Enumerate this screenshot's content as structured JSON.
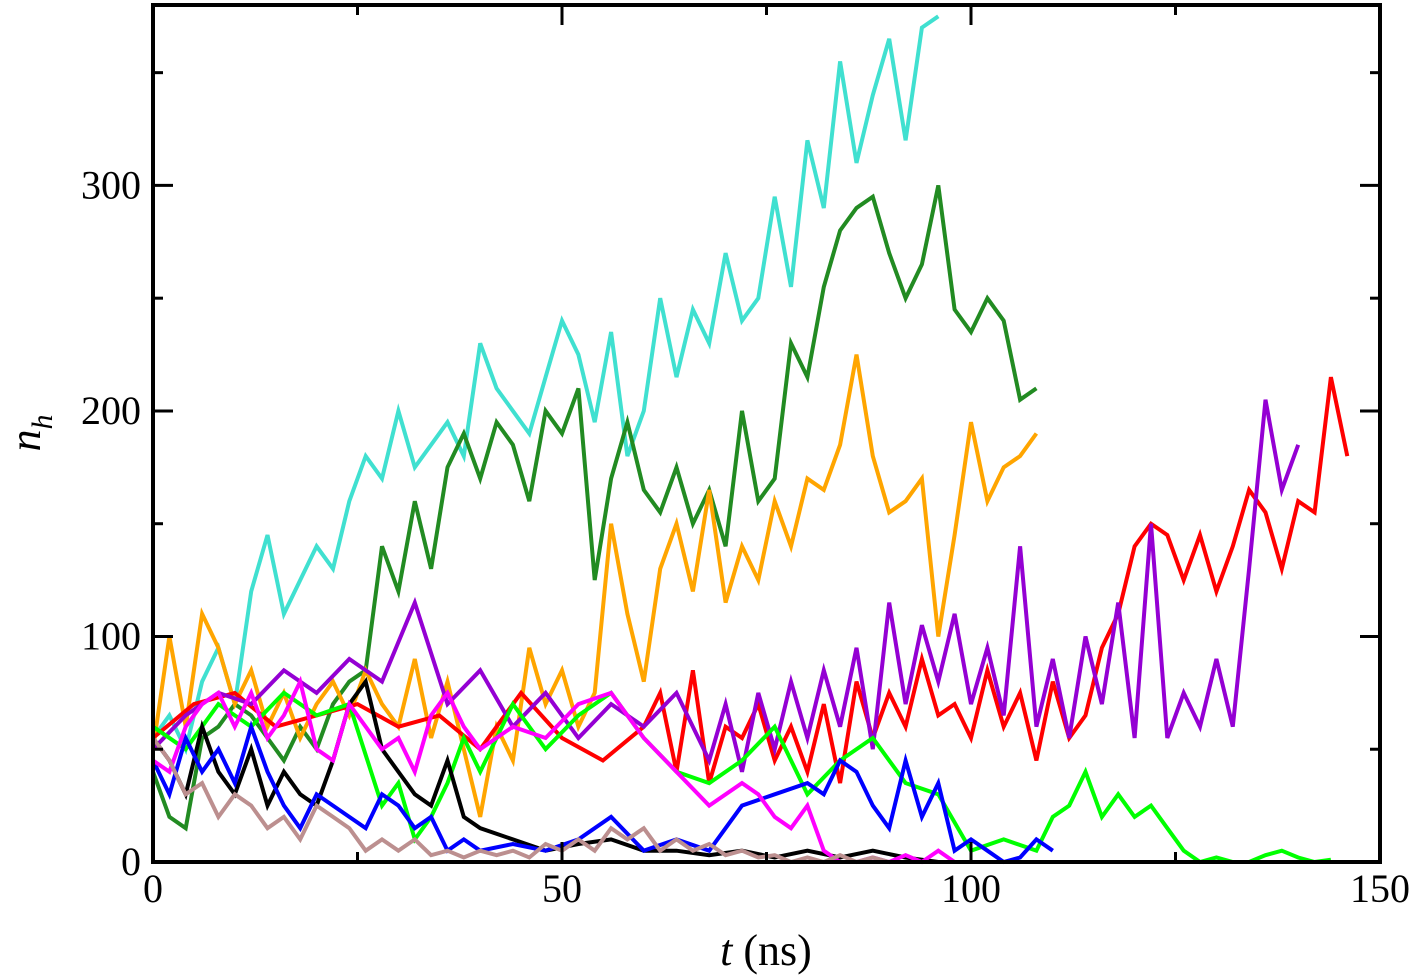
{
  "chart_data": {
    "type": "line",
    "title": "",
    "xlabel": {
      "var": "t",
      "unit": " (ns)"
    },
    "ylabel": {
      "var": "n",
      "sub": "h"
    },
    "xlim": [
      0,
      150
    ],
    "ylim": [
      0,
      380
    ],
    "xticks": [
      0,
      50,
      100,
      150
    ],
    "yticks": [
      0,
      100,
      200,
      300
    ],
    "xtick_labels": [
      "0",
      "50",
      "100",
      "150"
    ],
    "ytick_labels": [
      "0",
      "100",
      "200",
      "300"
    ],
    "grid": false,
    "legend": "none",
    "series": [
      {
        "color": "#40e0d0",
        "x": [
          0,
          2,
          4,
          6,
          8,
          10,
          12,
          14,
          16,
          18,
          20,
          22,
          24,
          26,
          28,
          30,
          32,
          34,
          36,
          38,
          40,
          42,
          44,
          46,
          48,
          50,
          52,
          54,
          56,
          58,
          60,
          62,
          64,
          66,
          68,
          70,
          72,
          74,
          76,
          78,
          80,
          82,
          84,
          86,
          88,
          90,
          92,
          94,
          96
        ],
        "y": [
          55,
          65,
          50,
          80,
          95,
          70,
          120,
          145,
          110,
          125,
          140,
          130,
          160,
          180,
          170,
          200,
          175,
          185,
          195,
          180,
          230,
          210,
          200,
          190,
          215,
          240,
          225,
          195,
          235,
          180,
          200,
          250,
          215,
          245,
          230,
          270,
          240,
          250,
          295,
          255,
          320,
          290,
          355,
          310,
          340,
          365,
          320,
          370,
          375
        ]
      },
      {
        "color": "#228b22",
        "x": [
          0,
          2,
          4,
          6,
          8,
          10,
          12,
          14,
          16,
          18,
          20,
          22,
          24,
          26,
          28,
          30,
          32,
          34,
          36,
          38,
          40,
          42,
          44,
          46,
          48,
          50,
          52,
          54,
          56,
          58,
          60,
          62,
          64,
          66,
          68,
          70,
          72,
          74,
          76,
          78,
          80,
          82,
          84,
          86,
          88,
          90,
          92,
          94,
          96,
          98,
          100,
          102,
          104,
          106,
          108
        ],
        "y": [
          40,
          20,
          15,
          55,
          60,
          70,
          65,
          55,
          45,
          60,
          50,
          70,
          80,
          85,
          140,
          120,
          160,
          130,
          175,
          190,
          170,
          195,
          185,
          160,
          200,
          190,
          210,
          125,
          170,
          195,
          165,
          155,
          175,
          150,
          165,
          140,
          200,
          160,
          170,
          230,
          215,
          255,
          280,
          290,
          295,
          270,
          250,
          265,
          300,
          245,
          235,
          250,
          240,
          205,
          210
        ]
      },
      {
        "color": "#ffa500",
        "x": [
          0,
          2,
          4,
          6,
          8,
          10,
          12,
          14,
          16,
          18,
          20,
          22,
          24,
          26,
          28,
          30,
          32,
          34,
          36,
          38,
          40,
          42,
          44,
          46,
          48,
          50,
          52,
          54,
          56,
          58,
          60,
          62,
          64,
          66,
          68,
          70,
          72,
          74,
          76,
          78,
          80,
          82,
          84,
          86,
          88,
          90,
          92,
          94,
          96,
          98,
          100,
          102,
          104,
          106,
          108
        ],
        "y": [
          50,
          100,
          60,
          110,
          95,
          70,
          85,
          60,
          75,
          55,
          70,
          80,
          65,
          85,
          70,
          60,
          90,
          55,
          80,
          50,
          20,
          60,
          45,
          95,
          70,
          85,
          60,
          75,
          150,
          110,
          80,
          130,
          150,
          120,
          165,
          115,
          140,
          125,
          160,
          140,
          170,
          165,
          185,
          225,
          180,
          155,
          160,
          170,
          100,
          145,
          195,
          160,
          175,
          180,
          190
        ]
      },
      {
        "color": "#ff0000",
        "x": [
          0,
          5,
          10,
          15,
          20,
          25,
          30,
          35,
          40,
          45,
          50,
          55,
          60,
          62,
          64,
          66,
          68,
          70,
          72,
          74,
          76,
          78,
          80,
          82,
          84,
          86,
          88,
          90,
          92,
          94,
          96,
          98,
          100,
          102,
          104,
          106,
          108,
          110,
          112,
          114,
          116,
          118,
          120,
          122,
          124,
          126,
          128,
          130,
          132,
          134,
          136,
          138,
          140,
          142,
          144,
          146
        ],
        "y": [
          55,
          70,
          75,
          60,
          65,
          70,
          60,
          65,
          50,
          75,
          55,
          45,
          60,
          75,
          40,
          85,
          35,
          60,
          55,
          70,
          45,
          60,
          40,
          70,
          35,
          80,
          55,
          75,
          60,
          90,
          65,
          70,
          55,
          85,
          60,
          75,
          45,
          80,
          55,
          65,
          95,
          110,
          140,
          150,
          145,
          125,
          145,
          120,
          140,
          165,
          155,
          130,
          160,
          155,
          215,
          180
        ]
      },
      {
        "color": "#9400d3",
        "x": [
          0,
          4,
          8,
          12,
          16,
          20,
          24,
          28,
          32,
          36,
          40,
          44,
          48,
          52,
          56,
          60,
          64,
          68,
          70,
          72,
          74,
          76,
          78,
          80,
          82,
          84,
          86,
          88,
          90,
          92,
          94,
          96,
          98,
          100,
          102,
          104,
          106,
          108,
          110,
          112,
          114,
          116,
          118,
          120,
          122,
          124,
          126,
          128,
          130,
          132,
          134,
          136,
          138,
          140
        ],
        "y": [
          50,
          65,
          75,
          70,
          85,
          75,
          90,
          80,
          115,
          70,
          85,
          60,
          75,
          55,
          70,
          60,
          75,
          45,
          70,
          40,
          75,
          50,
          80,
          55,
          85,
          60,
          95,
          50,
          115,
          70,
          105,
          80,
          110,
          70,
          95,
          65,
          140,
          60,
          90,
          55,
          100,
          70,
          115,
          55,
          150,
          55,
          75,
          60,
          90,
          60,
          130,
          205,
          165,
          185
        ]
      },
      {
        "color": "#00ff00",
        "x": [
          0,
          4,
          8,
          12,
          16,
          20,
          24,
          28,
          30,
          32,
          34,
          36,
          38,
          40,
          44,
          48,
          52,
          56,
          60,
          64,
          68,
          72,
          76,
          80,
          84,
          88,
          92,
          96,
          100,
          104,
          108,
          110,
          112,
          114,
          116,
          118,
          120,
          122,
          124,
          126,
          128,
          130,
          132,
          134,
          136,
          138,
          140,
          142,
          144
        ],
        "y": [
          60,
          50,
          70,
          60,
          75,
          65,
          70,
          25,
          35,
          10,
          20,
          35,
          55,
          40,
          70,
          50,
          65,
          75,
          55,
          40,
          35,
          45,
          60,
          30,
          45,
          55,
          35,
          30,
          5,
          10,
          5,
          20,
          25,
          40,
          20,
          30,
          20,
          25,
          15,
          5,
          0,
          2,
          0,
          0,
          3,
          5,
          2,
          0,
          1
        ]
      },
      {
        "color": "#000000",
        "x": [
          0,
          2,
          4,
          6,
          8,
          10,
          12,
          14,
          16,
          18,
          20,
          22,
          24,
          26,
          28,
          30,
          32,
          34,
          36,
          38,
          40,
          44,
          48,
          52,
          56,
          60,
          64,
          68,
          72,
          76,
          80,
          84,
          88,
          92,
          96,
          100
        ],
        "y": [
          55,
          45,
          30,
          60,
          40,
          30,
          50,
          25,
          40,
          30,
          25,
          45,
          70,
          80,
          50,
          40,
          30,
          25,
          45,
          20,
          15,
          10,
          5,
          8,
          10,
          5,
          5,
          3,
          5,
          2,
          5,
          2,
          5,
          2,
          0,
          0
        ]
      },
      {
        "color": "#0000ff",
        "x": [
          0,
          2,
          4,
          6,
          8,
          10,
          12,
          14,
          16,
          18,
          20,
          22,
          24,
          26,
          28,
          30,
          32,
          34,
          36,
          38,
          40,
          44,
          48,
          52,
          56,
          60,
          64,
          68,
          72,
          76,
          80,
          82,
          84,
          86,
          88,
          90,
          92,
          94,
          96,
          98,
          100,
          102,
          104,
          106,
          108,
          110
        ],
        "y": [
          45,
          30,
          55,
          40,
          50,
          35,
          60,
          40,
          25,
          15,
          30,
          25,
          20,
          15,
          30,
          25,
          15,
          20,
          5,
          10,
          5,
          8,
          5,
          10,
          20,
          5,
          10,
          5,
          25,
          30,
          35,
          30,
          45,
          40,
          25,
          15,
          45,
          20,
          35,
          5,
          10,
          5,
          0,
          2,
          10,
          5
        ]
      },
      {
        "color": "#ff00ff",
        "x": [
          0,
          2,
          4,
          6,
          8,
          10,
          12,
          14,
          16,
          18,
          20,
          22,
          24,
          26,
          28,
          30,
          32,
          34,
          36,
          38,
          40,
          44,
          48,
          52,
          56,
          60,
          64,
          68,
          72,
          74,
          76,
          78,
          80,
          82,
          84,
          86,
          88,
          90,
          92,
          94,
          96,
          98
        ],
        "y": [
          45,
          40,
          60,
          70,
          75,
          60,
          75,
          55,
          65,
          80,
          50,
          45,
          70,
          60,
          50,
          55,
          40,
          65,
          75,
          60,
          50,
          60,
          55,
          70,
          75,
          55,
          40,
          25,
          35,
          30,
          20,
          15,
          25,
          5,
          0,
          0,
          2,
          0,
          3,
          0,
          5,
          0
        ]
      },
      {
        "color": "#bc8f8f",
        "x": [
          0,
          2,
          4,
          6,
          8,
          10,
          12,
          14,
          16,
          18,
          20,
          22,
          24,
          26,
          28,
          30,
          32,
          34,
          36,
          38,
          40,
          42,
          44,
          46,
          48,
          50,
          52,
          54,
          56,
          58,
          60,
          62,
          64,
          66,
          68,
          70,
          72,
          74,
          76,
          78,
          80,
          82,
          84,
          86,
          88,
          90
        ],
        "y": [
          55,
          45,
          30,
          35,
          20,
          30,
          25,
          15,
          20,
          10,
          25,
          20,
          15,
          5,
          10,
          5,
          10,
          3,
          5,
          2,
          5,
          3,
          5,
          2,
          8,
          5,
          10,
          5,
          15,
          10,
          15,
          5,
          10,
          5,
          8,
          3,
          5,
          2,
          3,
          0,
          2,
          0,
          3,
          0,
          2,
          0
        ]
      }
    ]
  }
}
